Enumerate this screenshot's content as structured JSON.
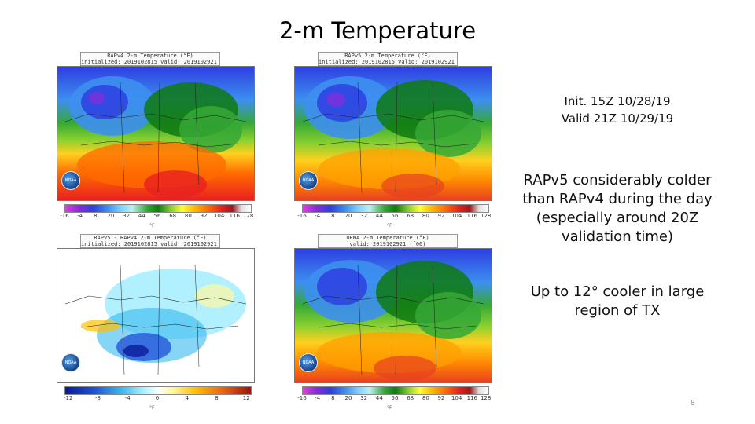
{
  "slide": {
    "title": "2-m Temperature",
    "slide_number": "8"
  },
  "panels": [
    {
      "header_line1": "RAPv4 2-m Temperature (°F)",
      "header_line2": "initialized: 2019102815 valid: 2019102921 (f30)",
      "logo": "NOAA",
      "colorbar_ticks": [
        "-16",
        "-4",
        "8",
        "20",
        "32",
        "44",
        "56",
        "68",
        "80",
        "92",
        "104",
        "116",
        "128"
      ],
      "unit": "°F"
    },
    {
      "header_line1": "RAPv5 2-m Temperature (°F)",
      "header_line2": "initialized: 2019102815 valid: 2019102921 (f30)",
      "logo": "NOAA",
      "colorbar_ticks": [
        "-16",
        "-4",
        "8",
        "20",
        "32",
        "44",
        "56",
        "68",
        "80",
        "92",
        "104",
        "116",
        "128"
      ],
      "unit": "°F"
    },
    {
      "header_line1": "RAPv5 - RAPv4 2-m Temperature (°F)",
      "header_line2": "initialized: 2019102815 valid: 2019102921 (f30)",
      "logo": "NOAA",
      "colorbar_ticks": [
        "-12",
        "-8",
        "-4",
        "0",
        "4",
        "8",
        "12"
      ],
      "unit": "°F"
    },
    {
      "header_line1": "URMA 2-m Temperature (°F)",
      "header_line2": "valid: 2019102921 (f00)",
      "logo": "NOAA",
      "colorbar_ticks": [
        "-16",
        "-4",
        "8",
        "20",
        "32",
        "44",
        "56",
        "68",
        "80",
        "92",
        "104",
        "116",
        "128"
      ],
      "unit": "°F"
    }
  ],
  "sidebar": {
    "init_line": "Init. 15Z 10/28/19",
    "valid_line": "Valid 21Z 10/29/19",
    "note1": "RAPv5 considerably colder than RAPv4 during the day (especially around 20Z validation time)",
    "note2": "Up to 12° cooler in large region of TX"
  },
  "colors": {
    "cold_purple": "#8c2bd9",
    "cold_blue": "#2d3fe0",
    "green": "#0e7a10",
    "yellow": "#ffff33",
    "warm_orange": "#ff6a00",
    "hot_red": "#e82020",
    "diff_blue": "#1d4ed8",
    "diff_light": "#a8f0ff"
  }
}
